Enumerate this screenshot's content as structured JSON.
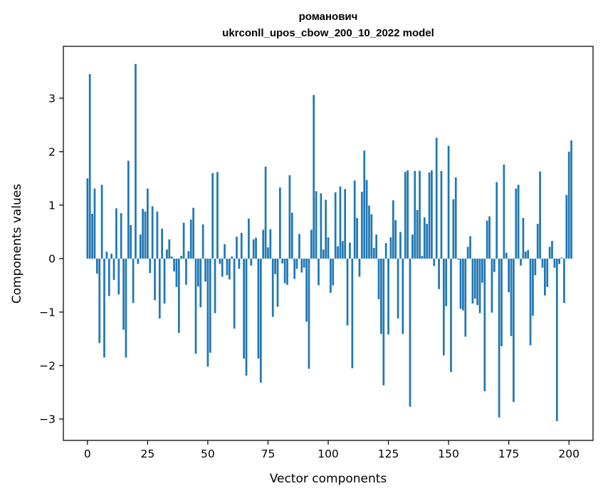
{
  "chart_data": {
    "type": "bar",
    "title_line1": "романович",
    "title_line2": "ukrconll_upos_cbow_200_10_2022 model",
    "xlabel": "Vector components",
    "ylabel": "Components values",
    "xlim": [
      -10,
      210
    ],
    "ylim": [
      -3.4,
      3.97
    ],
    "xticks": [
      0,
      25,
      50,
      75,
      100,
      125,
      150,
      175,
      200
    ],
    "xtick_labels": [
      "0",
      "25",
      "50",
      "75",
      "100",
      "125",
      "150",
      "175",
      "200"
    ],
    "yticks": [
      -3,
      -2,
      -1,
      0,
      1,
      2,
      3
    ],
    "ytick_labels": [
      "−3",
      "−2",
      "−1",
      "0",
      "1",
      "2",
      "3"
    ],
    "bar_color": "#1f77b4",
    "grid": false,
    "legend": "none",
    "values": [
      1.5,
      3.45,
      0.84,
      1.31,
      -0.28,
      -1.58,
      1.38,
      -1.85,
      0.13,
      -0.7,
      0.09,
      -0.4,
      0.94,
      -0.67,
      0.85,
      -1.33,
      -1.85,
      1.83,
      0.63,
      -0.83,
      3.64,
      -0.1,
      0.45,
      0.93,
      0.88,
      1.31,
      -0.27,
      0.98,
      -0.78,
      0.88,
      -1.12,
      0.56,
      -0.84,
      0.17,
      0.36,
      0.04,
      -0.24,
      -0.53,
      -1.39,
      0.05,
      0.67,
      -0.49,
      0.14,
      0.73,
      0.95,
      -1.78,
      -0.52,
      -0.91,
      0.64,
      -0.43,
      -2.02,
      -1.76,
      1.6,
      -1.02,
      1.62,
      -0.1,
      -0.34,
      0.27,
      -0.31,
      -0.39,
      0.04,
      -1.31,
      0.41,
      -0.19,
      0.48,
      -1.87,
      -2.19,
      0.75,
      -0.13,
      0.36,
      0.39,
      -1.87,
      -2.32,
      0.54,
      1.72,
      0.21,
      0.55,
      -1.09,
      -0.29,
      -0.9,
      1.33,
      -0.09,
      -0.46,
      -0.49,
      1.56,
      0.86,
      -0.38,
      -0.19,
      0.46,
      -0.26,
      -0.17,
      -1.18,
      -2.06,
      0.54,
      3.06,
      1.26,
      -0.5,
      1.22,
      0.17,
      1.1,
      0.4,
      -0.64,
      -0.5,
      1.24,
      0.23,
      1.35,
      0.33,
      1.3,
      -1.25,
      0.3,
      -2.05,
      1.46,
      0.76,
      -0.34,
      1.25,
      2.02,
      1.47,
      0.99,
      0.83,
      0.2,
      0.45,
      -0.76,
      -1.41,
      -2.37,
      0.29,
      -1.42,
      0.4,
      1.09,
      0.72,
      -1.12,
      0.5,
      -1.41,
      1.62,
      1.65,
      -2.77,
      0.45,
      1.64,
      0.91,
      1.64,
      0.05,
      0.77,
      0.65,
      1.61,
      1.65,
      -0.14,
      2.26,
      -0.57,
      1.64,
      -1.81,
      -0.89,
      2.11,
      -2.12,
      1.11,
      1.52,
      -0.02,
      -0.94,
      -0.97,
      -1.46,
      0.22,
      0.42,
      -0.84,
      -0.75,
      -0.87,
      -1.02,
      -0.45,
      -2.48,
      0.71,
      0.79,
      -1.01,
      -0.25,
      1.43,
      -2.97,
      -1.64,
      1.76,
      0.11,
      -0.63,
      -1.45,
      -2.68,
      1.31,
      1.38,
      -0.13,
      0.76,
      0.13,
      0.16,
      -1.62,
      -1.07,
      -0.31,
      0.65,
      1.63,
      -0.17,
      -0.69,
      -0.53,
      0.22,
      0.33,
      -0.17,
      -3.04,
      -0.1,
      0.02,
      -0.83,
      1.19,
      2.0,
      2.21
    ]
  }
}
